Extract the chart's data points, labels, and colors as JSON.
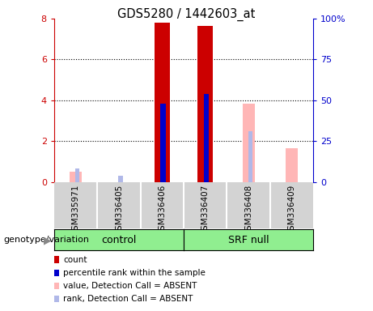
{
  "title": "GDS5280 / 1442603_at",
  "samples": [
    "GSM335971",
    "GSM336405",
    "GSM336406",
    "GSM336407",
    "GSM336408",
    "GSM336409"
  ],
  "count_values": [
    0,
    0,
    7.8,
    7.65,
    0,
    0
  ],
  "rank_values": [
    0,
    0,
    3.85,
    4.3,
    0,
    0
  ],
  "absent_value_values": [
    0.5,
    0,
    0,
    0,
    3.85,
    1.65
  ],
  "absent_rank_values": [
    0.65,
    0.3,
    0,
    0,
    2.5,
    0
  ],
  "ylim_left": [
    0,
    8
  ],
  "ylim_right": [
    0,
    100
  ],
  "yticks_left": [
    0,
    2,
    4,
    6,
    8
  ],
  "yticklabels_right": [
    "0",
    "25",
    "50",
    "75",
    "100%"
  ],
  "color_count": "#cc0000",
  "color_rank": "#0000cc",
  "color_absent_value": "#ffb6b6",
  "color_absent_rank": "#b0b8e8",
  "count_bar_width": 0.35,
  "rank_bar_width": 0.12,
  "absent_bar_width": 0.28,
  "absent_rank_bar_width": 0.1,
  "sample_bg": "#d3d3d3",
  "control_color": "#90EE90",
  "srf_color": "#90EE90",
  "legend_items": [
    "count",
    "percentile rank within the sample",
    "value, Detection Call = ABSENT",
    "rank, Detection Call = ABSENT"
  ],
  "legend_colors": [
    "#cc0000",
    "#0000cc",
    "#ffb6b6",
    "#b0b8e8"
  ],
  "genotype_label": "genotype/variation"
}
